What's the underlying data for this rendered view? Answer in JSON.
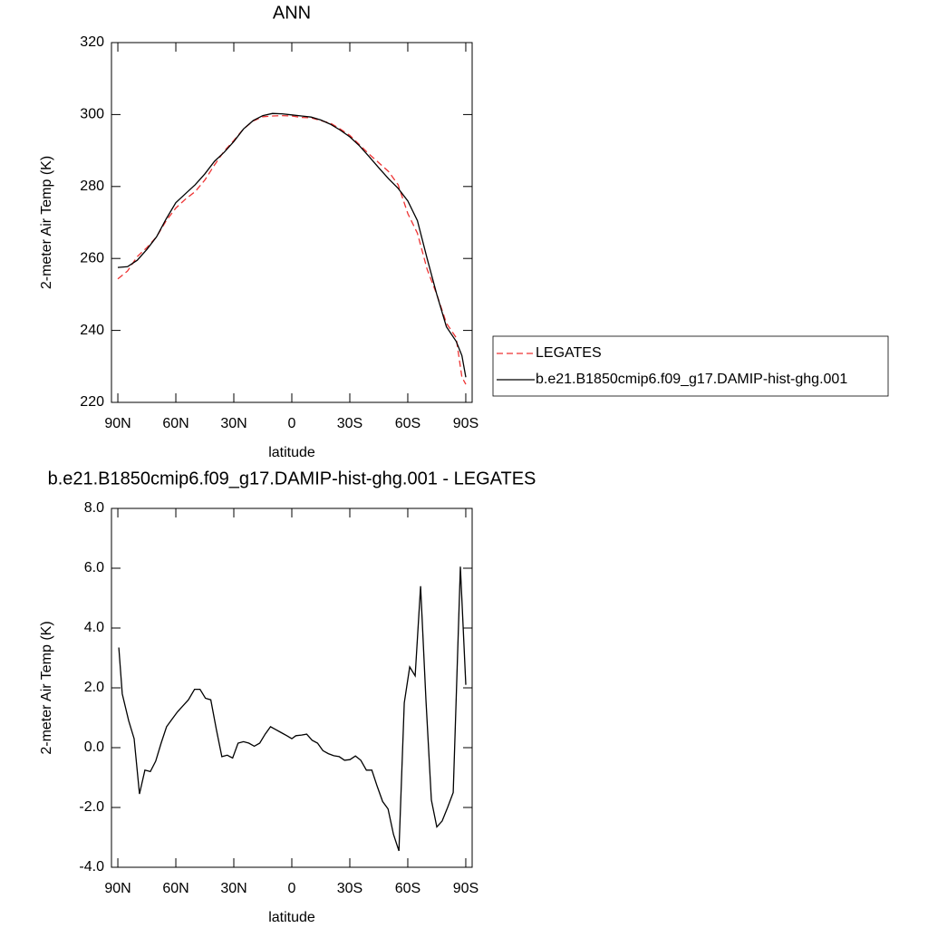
{
  "chart_data": [
    {
      "type": "line",
      "title": "ANN",
      "xlabel": "latitude",
      "ylabel": "2-meter Air Temp (K)",
      "xlim": [
        93.3,
        -93.3
      ],
      "xticks": [
        {
          "value": 90,
          "label": "90N"
        },
        {
          "value": 60,
          "label": "60N"
        },
        {
          "value": 30,
          "label": "30N"
        },
        0,
        {
          "value": -30,
          "label": "30S"
        },
        {
          "value": -60,
          "label": "60S"
        },
        {
          "value": -90,
          "label": "90S"
        }
      ],
      "ylim": [
        220,
        320
      ],
      "yticks": [
        220,
        240,
        260,
        280,
        300,
        320
      ],
      "x": [
        90,
        85,
        80,
        75,
        70,
        65,
        60,
        55,
        50,
        45,
        40,
        35,
        30,
        25,
        20,
        15,
        10,
        5,
        0,
        -5,
        -10,
        -15,
        -20,
        -25,
        -30,
        -35,
        -40,
        -45,
        -50,
        -55,
        -60,
        -65,
        -70,
        -75,
        -80,
        -85,
        -88,
        -90
      ],
      "series": [
        {
          "name": "LEGATES",
          "color": "#ee3333",
          "line_style": "dashed",
          "values": [
            254.3,
            256.5,
            260.5,
            263,
            266,
            270.5,
            274,
            276.5,
            278.6,
            281.8,
            286,
            289.8,
            292.8,
            296,
            298.2,
            299.4,
            299.6,
            299.7,
            299.6,
            299.2,
            299.1,
            298.3,
            297.6,
            296,
            294.2,
            291.6,
            289,
            286.6,
            284.2,
            280.5,
            272.5,
            267,
            257,
            250,
            242,
            238,
            227,
            225
          ]
        },
        {
          "name": "b.e21.B1850cmip6.f09_g17.DAMIP-hist-ghg.001",
          "color": "#000000",
          "line_style": "solid",
          "values": [
            257.5,
            257.7,
            259.5,
            262.5,
            266,
            271,
            275.5,
            278,
            280.5,
            283.5,
            287,
            289.5,
            292.5,
            296,
            298.3,
            299.7,
            300.3,
            300.2,
            299.9,
            299.6,
            299.3,
            298.5,
            297.3,
            295.7,
            293.8,
            291.3,
            288.3,
            285.2,
            282.2,
            279.5,
            276,
            270.5,
            260,
            250,
            241,
            237,
            233,
            227
          ]
        }
      ],
      "legend": "right"
    },
    {
      "type": "line",
      "title": "b.e21.B1850cmip6.f09_g17.DAMIP-hist-ghg.001 - LEGATES",
      "xlabel": "latitude",
      "ylabel": "2-meter Air Temp (K)",
      "xlim": [
        93.3,
        -93.3
      ],
      "xticks": [
        {
          "value": 90,
          "label": "90N"
        },
        {
          "value": 60,
          "label": "60N"
        },
        {
          "value": 30,
          "label": "30N"
        },
        0,
        {
          "value": -30,
          "label": "30S"
        },
        {
          "value": -60,
          "label": "60S"
        },
        {
          "value": -90,
          "label": "90S"
        }
      ],
      "ylim": [
        -4,
        8
      ],
      "yticks": [
        {
          "value": -4,
          "label": "-4.0"
        },
        {
          "value": -2,
          "label": "-2.0"
        },
        {
          "value": 0,
          "label": "0.0"
        },
        {
          "value": 2,
          "label": "2.0"
        },
        {
          "value": 4,
          "label": "4.0"
        },
        {
          "value": 6,
          "label": "6.0"
        },
        {
          "value": 8,
          "label": "8.0"
        }
      ],
      "x": [
        89.5,
        87.7,
        84.4,
        81.6,
        78.8,
        76,
        73.2,
        70.4,
        67.6,
        64.8,
        62,
        59.1,
        56.3,
        53.5,
        50.3,
        47.5,
        44.7,
        41.9,
        39,
        36.2,
        33.4,
        30.6,
        27.8,
        25,
        22.2,
        19.4,
        16.6,
        13.8,
        11,
        8.2,
        5.4,
        2.6,
        0,
        -2.1,
        -5,
        -7.7,
        -10.5,
        -13.3,
        -16.1,
        -18.9,
        -21.7,
        -24.5,
        -27.3,
        -30.1,
        -32.9,
        -35.7,
        -38.6,
        -41.4,
        -44.2,
        -47,
        -49.8,
        -52.6,
        -55.4,
        -58.2,
        -61,
        -63.8,
        -66.6,
        -69.4,
        -72.2,
        -75,
        -77.8,
        -80.6,
        -83.5,
        -87.2,
        -90
      ],
      "series": [
        {
          "color": "#000000",
          "line_style": "solid",
          "values": [
            3.35,
            1.8,
            0.9,
            0.3,
            -1.55,
            -0.75,
            -0.8,
            -0.45,
            0.15,
            0.7,
            0.95,
            1.2,
            1.4,
            1.6,
            1.95,
            1.95,
            1.65,
            1.6,
            0.6,
            -0.3,
            -0.25,
            -0.35,
            0.15,
            0.2,
            0.15,
            0.05,
            0.15,
            0.45,
            0.7,
            0.6,
            0.5,
            0.4,
            0.3,
            0.4,
            0.42,
            0.45,
            0.25,
            0.15,
            -0.1,
            -0.2,
            -0.27,
            -0.3,
            -0.42,
            -0.4,
            -0.28,
            -0.42,
            -0.75,
            -0.75,
            -1.3,
            -1.8,
            -2.05,
            -2.9,
            -3.45,
            1.5,
            2.7,
            2.4,
            5.4,
            1.6,
            -1.75,
            -2.65,
            -2.45,
            -2.0,
            -1.5,
            6.05,
            2.1
          ]
        }
      ]
    }
  ]
}
